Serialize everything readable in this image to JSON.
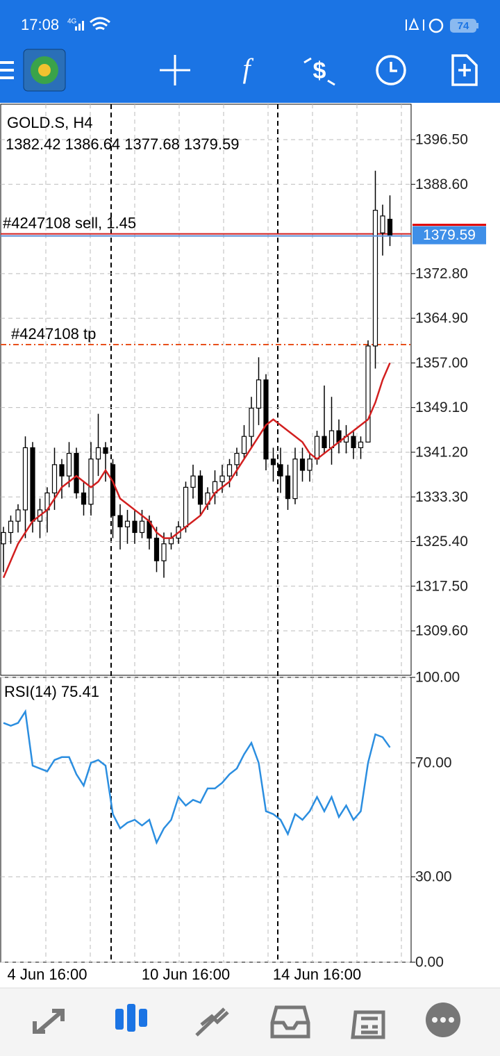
{
  "status_bar": {
    "time": "17:08",
    "network": "4G",
    "battery": "74"
  },
  "chart_data": [
    {
      "type": "candlestick",
      "title": "GOLD.S, H4",
      "subtitle": "1382.42 1386.64 1377.68 1379.59",
      "categories": [
        null,
        null,
        null,
        null,
        null,
        null,
        "4 Jun 16:00",
        null,
        null,
        null,
        null,
        null,
        null,
        null,
        null,
        null,
        null,
        null,
        null,
        null,
        null,
        null,
        null,
        null,
        null,
        "10 Jun 16:00",
        null,
        null,
        null,
        null,
        null,
        null,
        null,
        null,
        null,
        null,
        null,
        null,
        null,
        null,
        null,
        null,
        null,
        "14 Jun 16:00",
        null,
        null,
        null,
        null,
        null,
        null,
        null,
        null,
        null,
        null
      ],
      "open": [
        1325,
        1327,
        1329,
        1331,
        1342,
        1329,
        1331,
        1334,
        1339,
        1337,
        1341,
        1334,
        1332,
        1340,
        1342,
        1339,
        1330,
        1328,
        1329,
        1327,
        1329,
        1326,
        1322,
        1325,
        1326,
        1328,
        1335,
        1337,
        1332,
        1334,
        1336,
        1337,
        1339,
        1341,
        1344,
        1349,
        1354,
        1340,
        1339,
        1337,
        1333,
        1340,
        1338,
        1340,
        1344,
        1342,
        1345,
        1343,
        1344,
        1342,
        1343,
        1360,
        1380,
        1382.42
      ],
      "high": [
        1328,
        1330,
        1332,
        1344,
        1343,
        1333,
        1335,
        1342,
        1340,
        1343,
        1342,
        1336,
        1343,
        1348,
        1343,
        1340,
        1332,
        1331,
        1331,
        1331,
        1330,
        1328,
        1327,
        1327,
        1329,
        1336,
        1339,
        1338,
        1335,
        1338,
        1339,
        1340,
        1342,
        1346,
        1351,
        1358,
        1355,
        1342,
        1342,
        1339,
        1342,
        1342,
        1341,
        1345,
        1353,
        1351,
        1347,
        1346,
        1345,
        1344,
        1361,
        1391,
        1385,
        1386.64
      ],
      "low": [
        1320,
        1325,
        1327,
        1326,
        1327,
        1326,
        1327,
        1331,
        1333,
        1335,
        1333,
        1330,
        1330,
        1337,
        1336,
        1326,
        1324,
        1325,
        1325,
        1326,
        1324,
        1320,
        1319,
        1324,
        1325,
        1327,
        1333,
        1330,
        1331,
        1332,
        1334,
        1335,
        1337,
        1340,
        1342,
        1346,
        1338,
        1336,
        1334,
        1331,
        1332,
        1336,
        1336,
        1339,
        1341,
        1339,
        1341,
        1341,
        1340,
        1340,
        1343,
        1356,
        1376,
        1377.68
      ],
      "close": [
        1327,
        1329,
        1331,
        1342,
        1329,
        1331,
        1334,
        1339,
        1337,
        1341,
        1334,
        1332,
        1340,
        1342,
        1341,
        1330,
        1328,
        1329,
        1327,
        1329,
        1326,
        1322,
        1325,
        1326,
        1328,
        1335,
        1337,
        1332,
        1334,
        1336,
        1337,
        1339,
        1341,
        1344,
        1349,
        1354,
        1340,
        1339,
        1337,
        1333,
        1340,
        1338,
        1340,
        1344,
        1342,
        1345,
        1343,
        1344,
        1342,
        1343,
        1360,
        1384,
        1383,
        1379.59
      ],
      "color_up": "#ffffff",
      "color_down": "#000000",
      "series": [
        {
          "color": "#d21f1f",
          "values": [
            1319,
            1322,
            1325,
            1327,
            1329,
            1330,
            1331,
            1333,
            1335,
            1336,
            1337,
            1336,
            1335,
            1336,
            1338,
            1336,
            1333,
            1332,
            1331,
            1330,
            1329,
            1327,
            1326,
            1326,
            1327,
            1328,
            1329,
            1330,
            1332,
            1334,
            1335,
            1336,
            1338,
            1340,
            1342,
            1344,
            1346,
            1347,
            1346,
            1345,
            1344,
            1343,
            1341,
            1340,
            1341,
            1342,
            1343,
            1344,
            1345,
            1346,
            1347,
            1350,
            1354,
            1357
          ]
        }
      ],
      "orders": [
        {
          "label": "#4247108 sell, 1.45",
          "value": 1379.59,
          "color": "#d21f1f"
        },
        {
          "label": "#4247108 tp",
          "value": 1360.0,
          "color": "#e8501c"
        }
      ],
      "last_price": 1379.59,
      "ylim": [
        1301.74,
        1402.77
      ],
      "yticks": [
        {
          "value": 1396.5,
          "label": "1396.50"
        },
        {
          "value": 1388.6,
          "label": "1388.60"
        },
        {
          "value": 1372.8,
          "label": "1372.80"
        },
        {
          "value": 1364.9,
          "label": "1364.90"
        },
        {
          "value": 1357,
          "label": "1357.00"
        },
        {
          "value": 1349.1,
          "label": "1349.10"
        },
        {
          "value": 1341.2,
          "label": "1341.20"
        },
        {
          "value": 1333.3,
          "label": "1333.30"
        },
        {
          "value": 1325.4,
          "label": "1325.40"
        },
        {
          "value": 1317.5,
          "label": "1317.50"
        },
        {
          "value": 1309.6,
          "label": "1309.60"
        }
      ],
      "grid": true
    },
    {
      "type": "line",
      "title": "RSI(14) 75.41",
      "color": "#2b8ee0",
      "values": [
        84,
        83,
        84,
        88,
        69,
        68,
        67,
        71,
        72,
        72,
        66,
        62,
        70,
        71,
        69,
        52,
        47,
        49,
        50,
        48,
        50,
        42,
        47,
        50,
        58,
        55,
        57,
        56,
        61,
        61,
        63,
        66,
        68,
        73,
        77,
        70,
        53,
        52,
        50,
        45,
        52,
        50,
        53,
        58,
        53,
        58,
        51,
        55,
        50,
        53,
        70,
        80,
        79,
        75.41
      ],
      "ylim": [
        0,
        100
      ],
      "yticks": [
        {
          "value": 0,
          "label": "0.00"
        },
        {
          "value": 30,
          "label": "30.00"
        },
        {
          "value": 70,
          "label": "70.00"
        },
        {
          "value": 100,
          "label": "100.00"
        }
      ],
      "grid": true
    }
  ]
}
